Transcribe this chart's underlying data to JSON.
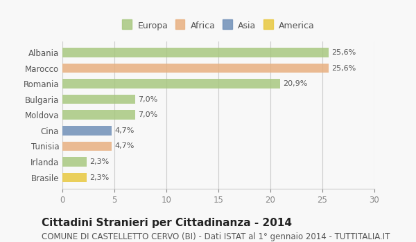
{
  "categories": [
    "Albania",
    "Marocco",
    "Romania",
    "Bulgaria",
    "Moldova",
    "Cina",
    "Tunisia",
    "Irlanda",
    "Brasile"
  ],
  "values": [
    25.6,
    25.6,
    20.9,
    7.0,
    7.0,
    4.7,
    4.7,
    2.3,
    2.3
  ],
  "labels": [
    "25,6%",
    "25,6%",
    "20,9%",
    "7,0%",
    "7,0%",
    "4,7%",
    "4,7%",
    "2,3%",
    "2,3%"
  ],
  "bar_colors": [
    "#a8c880",
    "#e8b080",
    "#a8c880",
    "#a8c880",
    "#a8c880",
    "#7090b8",
    "#e8b080",
    "#a8c880",
    "#e8c840"
  ],
  "legend_labels": [
    "Europa",
    "Africa",
    "Asia",
    "America"
  ],
  "legend_colors": [
    "#a8c880",
    "#e8b080",
    "#7090b8",
    "#e8c840"
  ],
  "xlim": [
    0,
    30
  ],
  "xticks": [
    0,
    5,
    10,
    15,
    20,
    25,
    30
  ],
  "title": "Cittadini Stranieri per Cittadinanza - 2014",
  "subtitle": "COMUNE DI CASTELLETTO CERVO (BI) - Dati ISTAT al 1° gennaio 2014 - TUTTITALIA.IT",
  "background_color": "#f8f8f8",
  "grid_color": "#cccccc",
  "bar_height": 0.6,
  "title_fontsize": 11,
  "subtitle_fontsize": 8.5,
  "label_fontsize": 8,
  "tick_fontsize": 8.5,
  "legend_fontsize": 9
}
